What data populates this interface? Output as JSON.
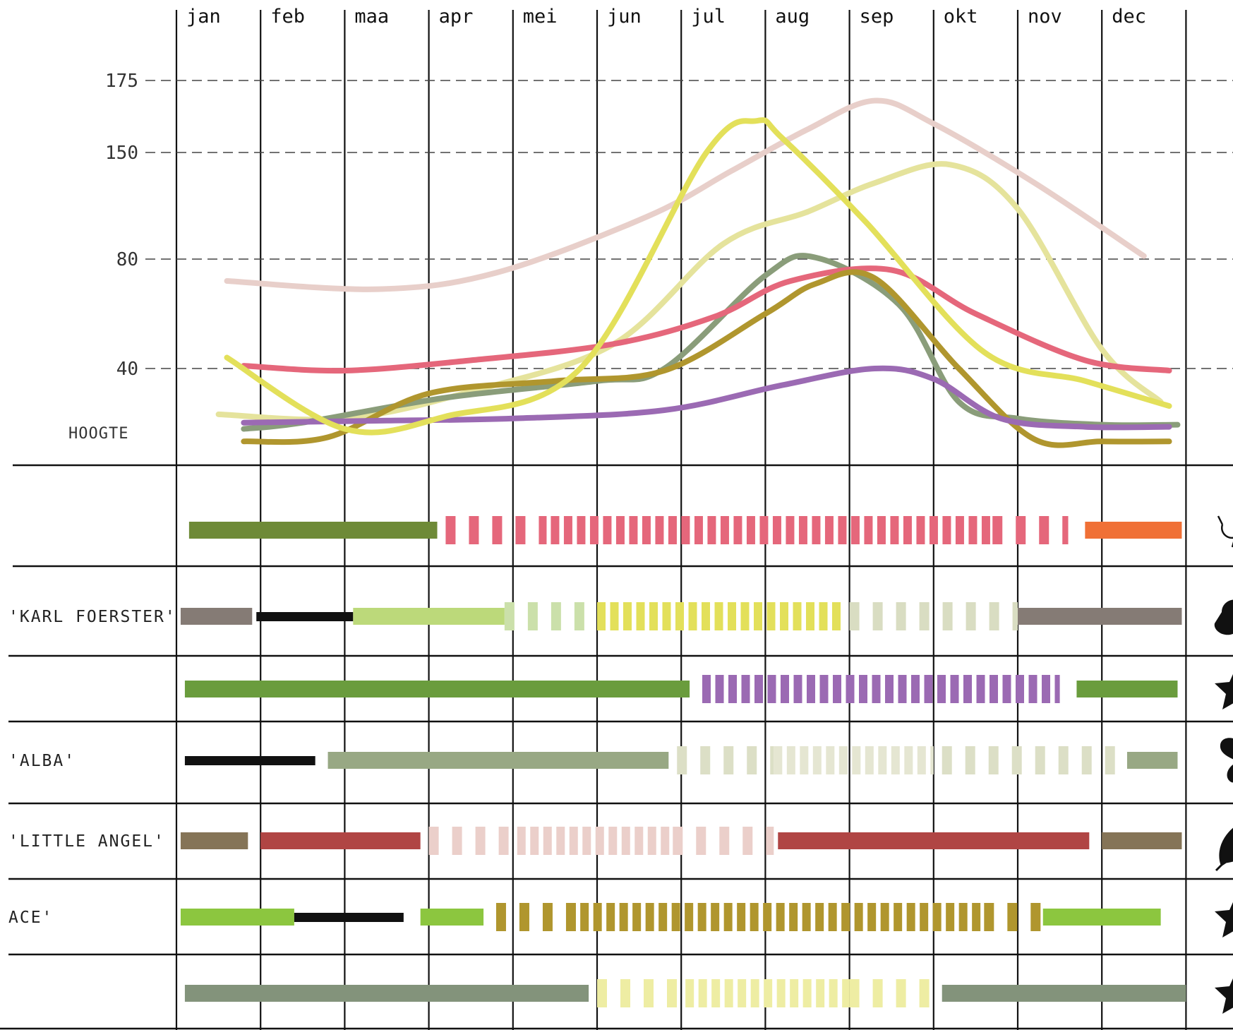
{
  "chart_data": {
    "type": "line",
    "months": [
      "jan",
      "feb",
      "maa",
      "apr",
      "mei",
      "jun",
      "jul",
      "aug",
      "sep",
      "okt",
      "nov",
      "dec"
    ],
    "ylabel": "HOOGTE",
    "y_ticks": [
      40,
      80,
      150,
      175
    ],
    "y_tick_labels": [
      "40",
      "80",
      "150",
      "175"
    ],
    "grid": "dashed horizontal at tick values, solid vertical month dividers",
    "series": [
      {
        "color": "#e8cfca",
        "points": [
          [
            0.6,
            72
          ],
          [
            2.4,
            69
          ],
          [
            3.8,
            75
          ],
          [
            5.6,
            108
          ],
          [
            6.6,
            138
          ],
          [
            7.5,
            158
          ],
          [
            8.3,
            168
          ],
          [
            9.0,
            160
          ],
          [
            10.2,
            130
          ],
          [
            11.5,
            82
          ]
        ]
      },
      {
        "color": "#e5e39c",
        "points": [
          [
            0.5,
            18
          ],
          [
            2.0,
            16
          ],
          [
            3.5,
            29
          ],
          [
            5.2,
            49
          ],
          [
            6.5,
            90
          ],
          [
            7.5,
            111
          ],
          [
            8.3,
            130
          ],
          [
            9.2,
            142
          ],
          [
            10.0,
            113
          ],
          [
            11.0,
            47
          ],
          [
            11.7,
            24
          ]
        ]
      },
      {
        "color": "#8a9d7a",
        "points": [
          [
            0.8,
            11
          ],
          [
            1.5,
            14
          ],
          [
            3.2,
            26
          ],
          [
            5.0,
            34
          ],
          [
            5.8,
            40
          ],
          [
            7.0,
            74
          ],
          [
            7.6,
            81
          ],
          [
            8.6,
            63
          ],
          [
            9.3,
            24
          ],
          [
            10.0,
            16
          ],
          [
            11.0,
            13
          ],
          [
            11.9,
            13
          ]
        ]
      },
      {
        "color": "#e5677b",
        "points": [
          [
            0.8,
            41
          ],
          [
            2.0,
            39
          ],
          [
            3.5,
            43
          ],
          [
            5.2,
            49
          ],
          [
            6.4,
            59
          ],
          [
            7.3,
            72
          ],
          [
            8.5,
            76
          ],
          [
            9.5,
            60
          ],
          [
            10.8,
            43
          ],
          [
            11.8,
            39
          ]
        ]
      },
      {
        "color": "#b0962e",
        "points": [
          [
            0.8,
            5
          ],
          [
            1.8,
            7
          ],
          [
            3.0,
            28
          ],
          [
            4.5,
            34
          ],
          [
            5.8,
            39
          ],
          [
            7.0,
            60
          ],
          [
            7.6,
            71
          ],
          [
            8.3,
            73
          ],
          [
            9.3,
            40
          ],
          [
            10.2,
            6
          ],
          [
            11.0,
            5
          ],
          [
            11.8,
            5
          ]
        ]
      },
      {
        "color": "#9b6ab3",
        "points": [
          [
            0.8,
            14
          ],
          [
            2.5,
            15
          ],
          [
            4.0,
            16
          ],
          [
            5.8,
            20
          ],
          [
            7.2,
            32
          ],
          [
            8.3,
            40
          ],
          [
            9.0,
            35
          ],
          [
            9.8,
            16
          ],
          [
            10.8,
            12
          ],
          [
            11.8,
            12
          ]
        ]
      },
      {
        "color": "#e3e05a",
        "points": [
          [
            0.6,
            44
          ],
          [
            2.0,
            11
          ],
          [
            3.2,
            17
          ],
          [
            4.8,
            40
          ],
          [
            6.3,
            150
          ],
          [
            6.9,
            161
          ],
          [
            7.2,
            155
          ],
          [
            8.2,
            104
          ],
          [
            9.6,
            46
          ],
          [
            10.8,
            34
          ],
          [
            11.8,
            22
          ]
        ]
      }
    ],
    "rows": [
      {
        "label": "",
        "icon": "hummingbird-icon",
        "segments": [
          {
            "start": 0.15,
            "end": 3.1,
            "color": "#6e8a37",
            "style": "solid"
          },
          {
            "start": 3.2,
            "end": 4.4,
            "color": "#e5677b",
            "style": "sparse"
          },
          {
            "start": 4.45,
            "end": 9.7,
            "color": "#e5677b",
            "style": "dense"
          },
          {
            "start": 9.7,
            "end": 10.6,
            "color": "#e5677b",
            "style": "sparse"
          },
          {
            "start": 10.8,
            "end": 11.95,
            "color": "#f07036",
            "style": "solid"
          }
        ]
      },
      {
        "label": "'KARL FOERSTER'",
        "icon": "bird-icon",
        "segments": [
          {
            "start": 0.05,
            "end": 0.9,
            "color": "#857b75",
            "style": "solid"
          },
          {
            "start": 0.95,
            "end": 2.1,
            "color": "#111111",
            "style": "thin"
          },
          {
            "start": 2.1,
            "end": 3.9,
            "color": "#bcd97a",
            "style": "solid"
          },
          {
            "start": 3.9,
            "end": 5.0,
            "color": "#cbe0aa",
            "style": "sparse"
          },
          {
            "start": 5.0,
            "end": 7.95,
            "color": "#e3e05a",
            "style": "dense"
          },
          {
            "start": 8.0,
            "end": 10.0,
            "color": "#d9ddc2",
            "style": "sparse"
          },
          {
            "start": 10.0,
            "end": 11.95,
            "color": "#857b75",
            "style": "solid"
          }
        ]
      },
      {
        "label": "",
        "icon": "star-icon",
        "segments": [
          {
            "start": 0.1,
            "end": 6.1,
            "color": "#6a9c3d",
            "style": "solid"
          },
          {
            "start": 6.25,
            "end": 10.5,
            "color": "#9b6ab3",
            "style": "dense"
          },
          {
            "start": 10.7,
            "end": 11.9,
            "color": "#6a9c3d",
            "style": "solid"
          }
        ]
      },
      {
        "label": "'ALBA'",
        "icon": "butterfly-icon",
        "segments": [
          {
            "start": 0.1,
            "end": 1.65,
            "color": "#111111",
            "style": "thin"
          },
          {
            "start": 1.8,
            "end": 5.85,
            "color": "#98a884",
            "style": "solid"
          },
          {
            "start": 5.95,
            "end": 7.1,
            "color": "#dcdfc6",
            "style": "sparse"
          },
          {
            "start": 7.1,
            "end": 9.0,
            "color": "#e5e6d2",
            "style": "dense"
          },
          {
            "start": 9.1,
            "end": 11.3,
            "color": "#dcdfc6",
            "style": "sparse"
          },
          {
            "start": 11.3,
            "end": 11.9,
            "color": "#98a884",
            "style": "solid"
          }
        ]
      },
      {
        "label": "'LITTLE ANGEL'",
        "icon": "leaf-icon",
        "segments": [
          {
            "start": 0.05,
            "end": 0.85,
            "color": "#857457",
            "style": "solid"
          },
          {
            "start": 1.0,
            "end": 2.9,
            "color": "#b04544",
            "style": "solid"
          },
          {
            "start": 3.0,
            "end": 4.0,
            "color": "#ebcfca",
            "style": "sparse"
          },
          {
            "start": 4.05,
            "end": 5.9,
            "color": "#ebcfca",
            "style": "dense"
          },
          {
            "start": 5.9,
            "end": 7.1,
            "color": "#ebcfca",
            "style": "sparse"
          },
          {
            "start": 7.15,
            "end": 10.85,
            "color": "#b04544",
            "style": "solid"
          },
          {
            "start": 11.0,
            "end": 11.95,
            "color": "#857457",
            "style": "solid"
          }
        ]
      },
      {
        "label": "ACE'",
        "icon": "star-icon",
        "segments": [
          {
            "start": 0.05,
            "end": 1.4,
            "color": "#8cc63f",
            "style": "solid"
          },
          {
            "start": 1.4,
            "end": 2.7,
            "color": "#111111",
            "style": "thin"
          },
          {
            "start": 2.9,
            "end": 3.65,
            "color": "#8cc63f",
            "style": "solid"
          },
          {
            "start": 3.8,
            "end": 4.75,
            "color": "#b0962e",
            "style": "sparse"
          },
          {
            "start": 4.8,
            "end": 9.6,
            "color": "#b0962e",
            "style": "dense"
          },
          {
            "start": 9.6,
            "end": 10.3,
            "color": "#b0962e",
            "style": "sparse"
          },
          {
            "start": 10.3,
            "end": 11.7,
            "color": "#8cc63f",
            "style": "solid"
          }
        ]
      },
      {
        "label": "",
        "icon": "star-icon",
        "segments": [
          {
            "start": 0.1,
            "end": 4.9,
            "color": "#83937b",
            "style": "solid"
          },
          {
            "start": 5.0,
            "end": 6.0,
            "color": "#eeeda3",
            "style": "sparse"
          },
          {
            "start": 6.05,
            "end": 8.0,
            "color": "#eeeda3",
            "style": "dense"
          },
          {
            "start": 8.0,
            "end": 9.0,
            "color": "#eeeda3",
            "style": "sparse"
          },
          {
            "start": 9.1,
            "end": 12.0,
            "color": "#83937b",
            "style": "solid"
          }
        ]
      }
    ]
  }
}
